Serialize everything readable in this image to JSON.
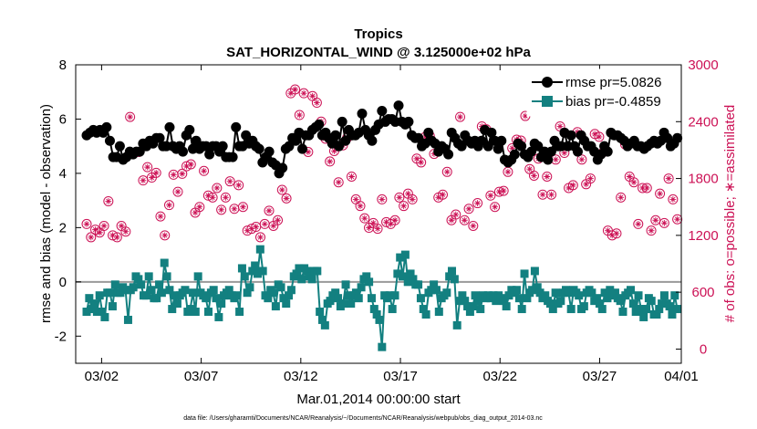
{
  "chart_data": {
    "type": "line",
    "title": "Tropics",
    "subtitle": "SAT_HORIZONTAL_WIND @ 3.125000e+02 hPa",
    "xlabel": "Mar.01,2014 00:00:00 start",
    "ylabel": "rmse and bias (model - observation)",
    "ylabel_right": "# of obs: o=possible; ∗=assimilated",
    "footer": "data file: /Users/gharamti/Documents/NCAR/Reanalysis/~/Documents/NCAR/Reanalysis/webpub/obs_diag_output_2014-03.nc",
    "xlim": [
      0.7,
      31.1
    ],
    "ylim": [
      -3,
      8
    ],
    "ylim_right": [
      -150,
      3000
    ],
    "x_ticks": [
      2,
      7,
      12,
      17,
      22,
      27,
      32
    ],
    "x_tick_labels": [
      "03/02",
      "03/07",
      "03/12",
      "03/17",
      "03/22",
      "03/27",
      "04/01"
    ],
    "y_ticks": [
      -2,
      0,
      2,
      4,
      6,
      8
    ],
    "y_ticks_right": [
      0,
      600,
      1200,
      1800,
      2400,
      3000
    ],
    "zero_line": 0,
    "legend": [
      "rmse pr=5.0826",
      "bias pr=-0.4859"
    ],
    "legend_position": "top-right",
    "series": [
      {
        "name": "rmse",
        "axis": "left",
        "color": "#000000",
        "marker": "circle",
        "values": [
          5.4,
          5.5,
          5.6,
          5.5,
          5.6,
          5.5,
          5.7,
          5.2,
          4.6,
          4.6,
          5.0,
          4.5,
          4.6,
          4.8,
          4.7,
          4.8,
          4.8,
          5.1,
          5.0,
          5.2,
          5.1,
          5.3,
          5.3,
          5.0,
          5.0,
          5.7,
          5.0,
          4.9,
          5.0,
          4.8,
          5.4,
          5.6,
          4.9,
          5.2,
          4.9,
          5.0,
          5.0,
          4.7,
          5.0,
          5.0,
          4.8,
          5.0,
          4.6,
          4.6,
          4.6,
          5.7,
          5.0,
          5.0,
          5.4,
          5.1,
          5.2,
          5.0,
          4.9,
          4.4,
          4.6,
          4.8,
          4.4,
          4.3,
          4.0,
          4.2,
          4.9,
          5.0,
          5.3,
          5.2,
          5.5,
          4.9,
          5.4,
          5.4,
          5.6,
          5.7,
          5.8,
          5.4,
          5.5,
          5.3,
          5.1,
          5.4,
          5.0,
          5.9,
          5.2,
          5.6,
          5.4,
          5.4,
          5.5,
          6.2,
          5.6,
          5.4,
          5.2,
          5.6,
          5.8,
          6.3,
          5.9,
          6.0,
          6.0,
          5.9,
          6.5,
          5.9,
          5.8,
          5.9,
          5.4,
          5.3,
          5.3,
          5.0,
          5.1,
          5.5,
          5.2,
          5.1,
          4.8,
          5.0,
          4.9,
          4.7,
          5.5,
          5.3,
          5.1,
          5.0,
          5.4,
          5.2,
          5.1,
          5.2,
          5.0,
          5.2,
          5.6,
          5.0,
          5.5,
          5.2,
          4.9,
          5.2,
          4.5,
          4.4,
          4.5,
          4.7,
          5.1,
          5.0,
          4.7,
          4.6,
          4.8,
          5.1,
          5.0,
          4.6,
          4.8,
          4.5,
          4.8,
          5.2,
          5.0,
          5.0,
          5.5,
          5.0,
          5.4,
          5.0,
          4.8,
          5.4,
          5.2,
          5.0,
          5.0,
          4.8,
          4.5,
          4.7,
          5.0,
          4.8,
          5.5,
          5.4,
          5.4,
          5.3,
          5.2,
          5.0,
          5.1,
          5.2,
          5.0,
          5.0,
          4.9,
          5.0,
          5.1,
          5.2,
          5.1,
          5.2,
          5.5,
          5.3,
          5.0,
          5.1,
          5.3
        ]
      },
      {
        "name": "bias",
        "axis": "left",
        "color": "#138080",
        "marker": "square",
        "values": [
          -1.1,
          -0.6,
          -1.0,
          -0.8,
          -1.1,
          -0.5,
          -1.1,
          -1.3,
          -0.4,
          -0.4,
          -0.9,
          -0.1,
          -0.4,
          -0.4,
          -0.2,
          -0.3,
          -1.4,
          -0.3,
          -0.2,
          0.2,
          0.1,
          -0.1,
          -0.5,
          -0.5,
          0.2,
          -0.3,
          -0.6,
          -0.6,
          -0.1,
          -0.4,
          0.7,
          0.2,
          -0.3,
          -1.0,
          -0.5,
          -0.8,
          -0.5,
          -0.4,
          -0.3,
          -1.1,
          -1.0,
          -0.4,
          -1.1,
          0.2,
          -0.4,
          -0.5,
          -0.6,
          -1.1,
          -0.4,
          -0.3,
          -0.6,
          -1.3,
          -0.8,
          -0.5,
          -0.4,
          -0.3,
          -0.5,
          -0.6,
          -0.5,
          -1.1,
          0.5,
          0.2,
          -0.4,
          -0.2,
          0.4,
          0.6,
          0.3,
          1.2,
          0.4,
          -0.5,
          -0.6,
          -0.3,
          -0.4,
          -0.9,
          -0.1,
          -0.2,
          -0.6,
          -0.8,
          -0.5,
          -0.3,
          0.2,
          0.3,
          0.5,
          0.1,
          0.5,
          0.4,
          0.2,
          0.1,
          0.4,
          0.4,
          -1.1,
          -1.4,
          -1.6,
          -0.8,
          -0.7,
          -0.5,
          -0.4,
          -0.6,
          -0.9,
          -0.8,
          -0.1,
          -0.5,
          -0.8,
          -0.5,
          -0.4,
          -0.6,
          -0.2,
          0.1,
          0.2,
          0.0,
          -0.6,
          -1.0,
          -1.2,
          -1.4,
          -2.4,
          -0.5,
          -0.6,
          -0.5,
          -1.0,
          -0.5,
          0.3,
          0.9,
          0.2,
          1.0,
          0.0,
          0.3,
          0.1,
          -0.1,
          -0.1,
          -0.6,
          -1.0,
          -1.2,
          -0.4,
          -0.3,
          -0.1,
          -0.3,
          -1.1,
          -0.6,
          -0.5,
          -0.4,
          0.2,
          0.4,
          0.1,
          -1.6,
          -0.7,
          -0.5,
          -0.7,
          -0.9,
          -1.1,
          -0.9,
          -0.5,
          -0.7,
          -1.0,
          -0.5,
          -0.6,
          -0.5,
          -0.6,
          -0.5,
          -0.7,
          -0.5,
          -0.6,
          -0.7,
          -0.9,
          -0.5,
          -0.3,
          -0.4,
          -0.3,
          -0.6,
          -1.0,
          0.3,
          -0.6,
          -0.4,
          -0.3,
          0.4,
          -0.2,
          -0.4,
          -0.6,
          -0.5,
          -0.7,
          -0.8,
          -1.0,
          -0.4,
          -0.8,
          -0.7,
          -0.4,
          -0.3,
          -0.4,
          -1.0,
          -0.3,
          -0.4,
          -0.5,
          -1.0,
          -0.9,
          -0.4,
          -0.3,
          -0.4,
          -0.7,
          -0.6,
          -0.8,
          -1.0,
          -0.4,
          -0.6,
          -0.3,
          -0.5,
          -0.4,
          -0.6,
          -0.7,
          -1.1,
          -0.5,
          -0.4,
          -0.3,
          -0.8,
          -1.1,
          -0.5,
          -1.0,
          -1.3,
          -1.0,
          -0.6,
          -0.7,
          -1.2,
          -1.2,
          -1.0,
          -0.8,
          -0.5,
          -0.8,
          -0.9,
          -1.2,
          -0.5,
          -1.0
        ]
      },
      {
        "name": "# of obs",
        "axis": "right",
        "color": "#cc1155",
        "marker": "circle-asterisk",
        "values": [
          1320,
          1180,
          1260,
          1230,
          1300,
          1560,
          1200,
          1180,
          1300,
          1240,
          2450,
          2070,
          2080,
          1780,
          1920,
          1810,
          1860,
          1400,
          1200,
          1520,
          1840,
          1660,
          1850,
          1930,
          1950,
          1440,
          1500,
          1880,
          1620,
          1600,
          1700,
          1470,
          1600,
          1770,
          1480,
          1730,
          1500,
          1250,
          1270,
          1290,
          1180,
          1320,
          1460,
          1300,
          1360,
          1680,
          1590,
          2700,
          2740,
          2470,
          2700,
          2080,
          2670,
          2600,
          2400,
          2220,
          1980,
          2090,
          1760,
          2150,
          2230,
          1820,
          1580,
          1510,
          1380,
          1280,
          1330,
          1270,
          1580,
          1340,
          1320,
          1360,
          1600,
          1510,
          1640,
          1580,
          2010,
          1970,
          2240,
          2250,
          2060,
          1600,
          1630,
          1870,
          1360,
          1420,
          2450,
          1360,
          1480,
          1300,
          1540,
          2350,
          2320,
          1620,
          1500,
          1660,
          1670,
          1870,
          2120,
          2210,
          2200,
          2460,
          1900,
          1830,
          2010,
          1630,
          1820,
          1630,
          2000,
          2350,
          2070,
          1700,
          1730,
          2290,
          2000,
          1740,
          1800,
          2270,
          2240,
          2080,
          1250,
          1200,
          1220,
          1600,
          2160,
          1820,
          1760,
          1320,
          1700,
          1700,
          1250,
          1360,
          1640,
          1330,
          1800,
          1580,
          1370
        ]
      }
    ]
  }
}
